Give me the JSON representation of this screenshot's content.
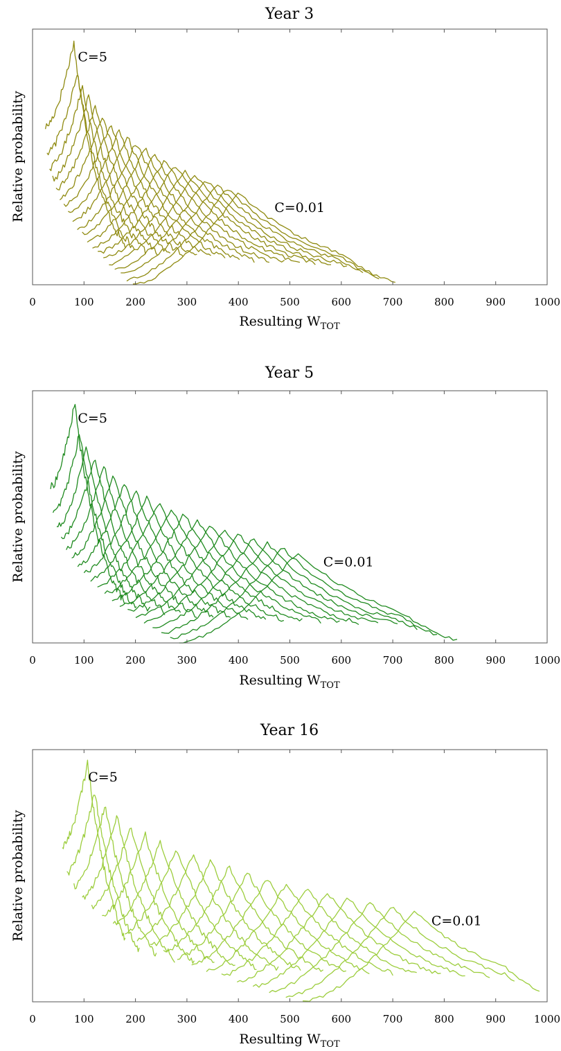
{
  "chart_data": [
    {
      "type": "line",
      "title": "Year 3",
      "xlabel": "Resulting W",
      "xlabel_sub": "TOT",
      "ylabel": "Relative probability",
      "xlim": [
        0,
        1000
      ],
      "xticks": [
        "0",
        "100",
        "200",
        "300",
        "400",
        "500",
        "600",
        "700",
        "800",
        "900",
        "1000"
      ],
      "grid": false,
      "color": "#8f8a10",
      "annotations": [
        {
          "text": "C=5",
          "x": 88,
          "y": 0.92
        },
        {
          "text": "C=0.01",
          "x": 470,
          "y": 0.3
        }
      ],
      "series_params": {
        "count": 20,
        "start_min": 25,
        "start_max": 195,
        "peak_min": 80,
        "peak_max": 400,
        "end_min": 180,
        "end_max": 705,
        "cutoff_max": 600
      }
    },
    {
      "type": "line",
      "title": "Year 5",
      "xlabel": "Resulting W",
      "xlabel_sub": "TOT",
      "ylabel": "Relative probability",
      "xlim": [
        0,
        1000
      ],
      "xticks": [
        "0",
        "100",
        "200",
        "300",
        "400",
        "500",
        "600",
        "700",
        "800",
        "900",
        "1000"
      ],
      "grid": false,
      "color": "#1f8a1f",
      "annotations": [
        {
          "text": "C=5",
          "x": 88,
          "y": 0.92
        },
        {
          "text": "C=0.01",
          "x": 565,
          "y": 0.32
        }
      ],
      "series_params": {
        "count": 20,
        "start_min": 35,
        "start_max": 285,
        "peak_min": 82,
        "peak_max": 515,
        "end_min": 180,
        "end_max": 825,
        "cutoff_max": 720
      }
    },
    {
      "type": "line",
      "title": "Year 16",
      "xlabel": "Resulting W",
      "xlabel_sub": "TOT",
      "ylabel": "Relative probability",
      "xlim": [
        0,
        1000
      ],
      "xticks": [
        "0",
        "100",
        "200",
        "300",
        "400",
        "500",
        "600",
        "700",
        "800",
        "900",
        "1000"
      ],
      "grid": false,
      "color": "#9ccd3c",
      "annotations": [
        {
          "text": "C=5",
          "x": 108,
          "y": 0.92
        },
        {
          "text": "C=0.01",
          "x": 775,
          "y": 0.32
        }
      ],
      "series_params": {
        "count": 20,
        "start_min": 58,
        "start_max": 525,
        "peak_min": 107,
        "peak_max": 740,
        "end_min": 180,
        "end_max": 985,
        "cutoff_max": 920
      }
    }
  ]
}
